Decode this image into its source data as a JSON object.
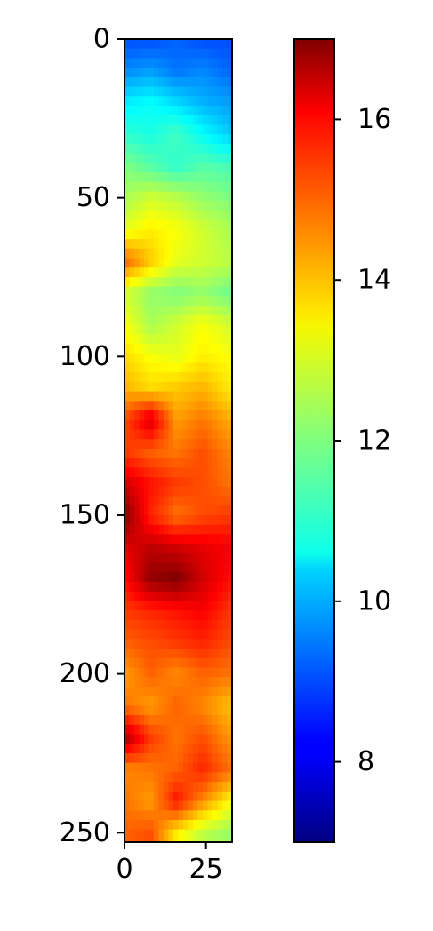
{
  "chart_data": {
    "type": "heatmap",
    "colormap": "jet",
    "x_ticks": [
      0,
      25
    ],
    "y_ticks": [
      0,
      50,
      100,
      150,
      200,
      250
    ],
    "x_range": [
      0,
      33
    ],
    "y_range": [
      0,
      253
    ],
    "colorbar": {
      "range": [
        7,
        17
      ],
      "ticks": [
        8,
        10,
        12,
        14,
        16
      ]
    },
    "grid": {
      "rows_y": [
        0,
        10,
        20,
        30,
        40,
        50,
        60,
        70,
        80,
        90,
        100,
        110,
        120,
        130,
        140,
        150,
        160,
        170,
        180,
        190,
        200,
        210,
        220,
        230,
        240,
        250
      ],
      "cols_x": [
        0,
        8,
        16,
        24,
        33
      ],
      "values": [
        [
          9.0,
          9.0,
          9.2,
          9.0,
          9.0
        ],
        [
          9.6,
          9.8,
          9.4,
          9.6,
          9.2
        ],
        [
          10.6,
          10.8,
          10.4,
          10.0,
          9.8
        ],
        [
          11.2,
          11.0,
          11.4,
          10.8,
          10.2
        ],
        [
          12.0,
          11.6,
          11.2,
          11.6,
          11.4
        ],
        [
          12.4,
          12.8,
          12.6,
          12.2,
          12.0
        ],
        [
          13.0,
          13.4,
          13.2,
          12.8,
          12.4
        ],
        [
          14.8,
          13.8,
          13.0,
          12.8,
          12.6
        ],
        [
          12.8,
          12.2,
          12.0,
          12.2,
          11.8
        ],
        [
          13.2,
          12.4,
          12.8,
          13.2,
          12.8
        ],
        [
          13.6,
          13.2,
          13.0,
          13.4,
          13.2
        ],
        [
          14.0,
          13.6,
          13.8,
          14.0,
          13.4
        ],
        [
          15.0,
          16.2,
          14.2,
          14.6,
          14.0
        ],
        [
          15.2,
          14.8,
          14.6,
          15.0,
          14.4
        ],
        [
          16.2,
          15.6,
          15.2,
          15.0,
          14.6
        ],
        [
          17.0,
          15.4,
          14.6,
          15.0,
          15.2
        ],
        [
          16.0,
          16.4,
          16.2,
          16.0,
          15.8
        ],
        [
          15.6,
          16.8,
          17.0,
          16.2,
          15.6
        ],
        [
          15.2,
          15.4,
          15.6,
          15.8,
          15.2
        ],
        [
          14.8,
          15.0,
          15.2,
          15.4,
          15.0
        ],
        [
          14.2,
          14.8,
          14.4,
          14.8,
          14.6
        ],
        [
          14.6,
          14.2,
          14.8,
          14.4,
          13.8
        ],
        [
          16.6,
          15.2,
          14.6,
          15.0,
          14.2
        ],
        [
          14.4,
          14.6,
          14.8,
          15.4,
          14.6
        ],
        [
          14.6,
          14.2,
          15.6,
          14.4,
          13.2
        ],
        [
          14.8,
          15.0,
          13.4,
          12.6,
          12.2
        ]
      ]
    }
  }
}
